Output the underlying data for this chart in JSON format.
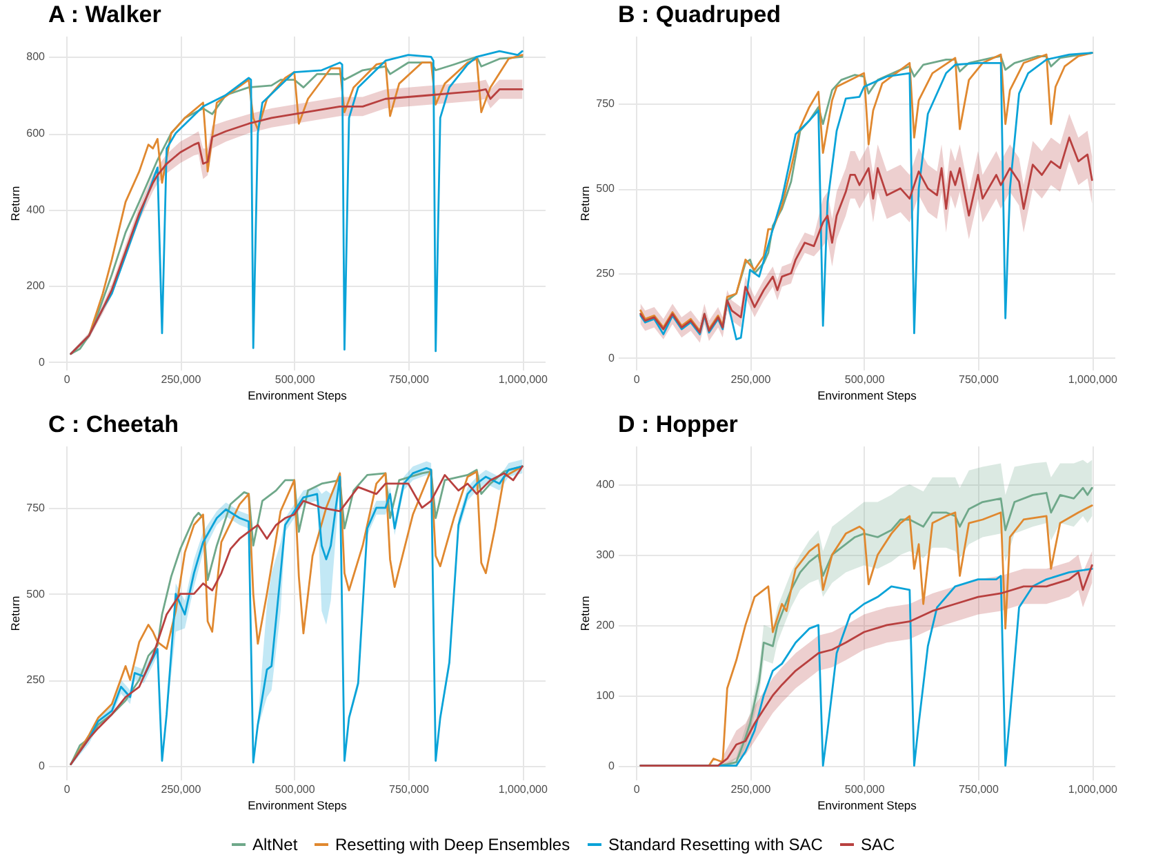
{
  "chart_data": [
    {
      "type": "line",
      "title": "A : Walker",
      "xlabel": "Environment Steps",
      "ylabel": "Return",
      "xlim": [
        -39500,
        1049500
      ],
      "ylim": [
        -20,
        855
      ],
      "xticks": [
        {
          "value": 0,
          "label": "0"
        },
        {
          "value": 250000,
          "label": "250,000"
        },
        {
          "value": 500000,
          "label": "500,000"
        },
        {
          "value": 750000,
          "label": "750,000"
        },
        {
          "value": 1000000,
          "label": "1,000,000"
        }
      ],
      "yticks": [
        0,
        200,
        400,
        600,
        800
      ],
      "grid": true,
      "legend": "bottom",
      "series": [
        {
          "name": "AltNet",
          "color": "#6fa88a",
          "x": [
            10000,
            30000,
            50000,
            70000,
            100000,
            130000,
            160000,
            200000,
            230000,
            260000,
            300000,
            320000,
            350000,
            400000,
            450000,
            470000,
            500000,
            520000,
            550000,
            600000,
            610000,
            650000,
            700000,
            710000,
            750000,
            800000,
            810000,
            850000,
            900000,
            910000,
            950000,
            1000000
          ],
          "values": [
            22,
            35,
            70,
            130,
            230,
            340,
            420,
            530,
            600,
            640,
            665,
            650,
            700,
            720,
            725,
            740,
            740,
            720,
            755,
            755,
            740,
            765,
            775,
            755,
            785,
            785,
            765,
            780,
            800,
            775,
            795,
            800
          ]
        },
        {
          "name": "Resetting with Deep Ensembles",
          "color": "#e0882f",
          "x": [
            10000,
            50000,
            80000,
            100000,
            130000,
            160000,
            180000,
            190000,
            200000,
            210000,
            230000,
            260000,
            300000,
            305000,
            310000,
            330000,
            400000,
            410000,
            420000,
            440000,
            480000,
            500000,
            510000,
            530000,
            580000,
            600000,
            610000,
            630000,
            680000,
            700000,
            710000,
            730000,
            780000,
            800000,
            810000,
            830000,
            880000,
            900000,
            910000,
            930000,
            970000,
            1000000
          ],
          "values": [
            22,
            70,
            180,
            270,
            420,
            500,
            570,
            560,
            585,
            470,
            600,
            640,
            680,
            600,
            500,
            680,
            740,
            640,
            610,
            690,
            745,
            760,
            625,
            690,
            770,
            770,
            655,
            720,
            780,
            785,
            645,
            730,
            785,
            785,
            675,
            730,
            785,
            795,
            655,
            720,
            795,
            805
          ]
        },
        {
          "name": "Standard Resetting with SAC",
          "color": "#0aa3d8",
          "x": [
            10000,
            50000,
            80000,
            100000,
            130000,
            160000,
            200000,
            210000,
            220000,
            240000,
            300000,
            350000,
            400000,
            405000,
            410000,
            420000,
            430000,
            500000,
            560000,
            600000,
            605000,
            610000,
            620000,
            640000,
            700000,
            750000,
            800000,
            805000,
            810000,
            820000,
            840000,
            880000,
            900000,
            950000,
            990000,
            1000000
          ],
          "values": [
            22,
            70,
            140,
            180,
            280,
            380,
            510,
            76,
            560,
            600,
            670,
            700,
            745,
            740,
            37,
            600,
            680,
            760,
            765,
            785,
            780,
            33,
            640,
            720,
            790,
            805,
            800,
            790,
            29,
            640,
            720,
            780,
            800,
            815,
            805,
            815
          ]
        },
        {
          "name": "SAC",
          "color": "#b8403f",
          "x": [
            10000,
            50000,
            80000,
            100000,
            130000,
            160000,
            190000,
            200000,
            220000,
            250000,
            280000,
            290000,
            300000,
            310000,
            320000,
            350000,
            400000,
            450000,
            500000,
            550000,
            600000,
            650000,
            700000,
            750000,
            800000,
            850000,
            900000,
            920000,
            930000,
            950000,
            1000000
          ],
          "values": [
            22,
            70,
            140,
            190,
            290,
            390,
            470,
            490,
            520,
            550,
            570,
            575,
            520,
            525,
            590,
            605,
            625,
            640,
            650,
            660,
            670,
            670,
            690,
            695,
            700,
            705,
            710,
            715,
            690,
            715,
            715
          ],
          "lower": [
            18,
            62,
            128,
            175,
            272,
            370,
            448,
            468,
            495,
            522,
            542,
            545,
            480,
            490,
            560,
            578,
            600,
            615,
            625,
            635,
            645,
            645,
            665,
            670,
            675,
            680,
            685,
            690,
            665,
            690,
            690
          ],
          "upper": [
            26,
            78,
            152,
            205,
            308,
            410,
            492,
            512,
            545,
            578,
            598,
            605,
            560,
            560,
            620,
            632,
            650,
            665,
            675,
            685,
            695,
            695,
            715,
            720,
            725,
            730,
            735,
            740,
            715,
            740,
            740
          ]
        }
      ]
    },
    {
      "type": "line",
      "title": "B : Quadruped",
      "xlabel": "Environment Steps",
      "ylabel": "Return",
      "xlim": [
        -39500,
        1049500
      ],
      "ylim": [
        -35,
        950
      ],
      "xticks": [
        {
          "value": 0,
          "label": "0"
        },
        {
          "value": 250000,
          "label": "250,000"
        },
        {
          "value": 500000,
          "label": "500,000"
        },
        {
          "value": 750000,
          "label": "750,000"
        },
        {
          "value": 1000000,
          "label": "1,000,000"
        }
      ],
      "yticks": [
        0,
        250,
        500,
        750
      ],
      "grid": true,
      "legend": "bottom",
      "series": [
        {
          "name": "AltNet",
          "color": "#6fa88a",
          "x": [
            10000,
            20000,
            40000,
            60000,
            80000,
            100000,
            120000,
            140000,
            150000,
            160000,
            180000,
            190000,
            200000,
            220000,
            240000,
            250000,
            260000,
            280000,
            290000,
            300000,
            320000,
            340000,
            360000,
            380000,
            400000,
            410000,
            430000,
            450000,
            480000,
            500000,
            510000,
            530000,
            580000,
            600000,
            610000,
            630000,
            680000,
            700000,
            710000,
            730000,
            780000,
            800000,
            810000,
            830000,
            880000,
            900000,
            910000,
            930000,
            1000000
          ],
          "values": [
            130,
            110,
            120,
            85,
            130,
            90,
            110,
            75,
            130,
            80,
            120,
            90,
            170,
            190,
            280,
            290,
            250,
            280,
            310,
            390,
            440,
            520,
            670,
            700,
            740,
            690,
            790,
            820,
            835,
            830,
            780,
            820,
            850,
            860,
            830,
            865,
            880,
            880,
            845,
            870,
            885,
            890,
            850,
            870,
            890,
            890,
            860,
            885,
            900
          ]
        },
        {
          "name": "Resetting with Deep Ensembles",
          "color": "#e0882f",
          "x": [
            10000,
            20000,
            40000,
            60000,
            80000,
            100000,
            120000,
            140000,
            150000,
            160000,
            180000,
            190000,
            200000,
            220000,
            240000,
            260000,
            280000,
            290000,
            300000,
            320000,
            340000,
            360000,
            380000,
            400000,
            410000,
            430000,
            440000,
            500000,
            510000,
            520000,
            540000,
            600000,
            610000,
            620000,
            650000,
            700000,
            710000,
            730000,
            760000,
            800000,
            810000,
            820000,
            850000,
            900000,
            910000,
            920000,
            940000,
            970000,
            1000000
          ],
          "values": [
            140,
            115,
            125,
            90,
            135,
            95,
            115,
            80,
            125,
            85,
            125,
            95,
            180,
            190,
            290,
            260,
            300,
            380,
            380,
            450,
            560,
            680,
            740,
            785,
            605,
            760,
            800,
            840,
            630,
            730,
            810,
            870,
            650,
            760,
            840,
            885,
            675,
            820,
            870,
            895,
            690,
            790,
            870,
            895,
            690,
            800,
            860,
            890,
            900
          ]
        },
        {
          "name": "Standard Resetting with SAC",
          "color": "#0aa3d8",
          "x": [
            10000,
            20000,
            40000,
            60000,
            80000,
            100000,
            120000,
            140000,
            150000,
            160000,
            180000,
            190000,
            200000,
            220000,
            230000,
            250000,
            270000,
            300000,
            320000,
            350000,
            380000,
            400000,
            410000,
            420000,
            440000,
            460000,
            490000,
            500000,
            550000,
            600000,
            610000,
            620000,
            640000,
            680000,
            700000,
            750000,
            800000,
            810000,
            820000,
            840000,
            860000,
            900000,
            950000,
            1000000
          ],
          "values": [
            125,
            105,
            115,
            70,
            125,
            85,
            105,
            70,
            125,
            75,
            115,
            85,
            170,
            55,
            60,
            260,
            240,
            380,
            470,
            660,
            700,
            730,
            95,
            460,
            670,
            765,
            770,
            800,
            830,
            840,
            73,
            500,
            720,
            840,
            865,
            870,
            870,
            117,
            500,
            780,
            840,
            880,
            895,
            900
          ]
        },
        {
          "name": "SAC",
          "color": "#b8403f",
          "x": [
            10000,
            20000,
            40000,
            60000,
            80000,
            100000,
            120000,
            140000,
            150000,
            160000,
            180000,
            190000,
            200000,
            210000,
            230000,
            240000,
            260000,
            280000,
            300000,
            310000,
            320000,
            340000,
            350000,
            370000,
            390000,
            410000,
            420000,
            430000,
            440000,
            460000,
            470000,
            480000,
            490000,
            510000,
            520000,
            530000,
            550000,
            580000,
            600000,
            620000,
            640000,
            660000,
            670000,
            680000,
            690000,
            700000,
            710000,
            730000,
            750000,
            760000,
            790000,
            800000,
            820000,
            840000,
            850000,
            870000,
            890000,
            910000,
            930000,
            950000,
            970000,
            990000,
            1000000
          ],
          "values": [
            130,
            110,
            120,
            85,
            130,
            90,
            110,
            75,
            130,
            80,
            120,
            90,
            170,
            140,
            120,
            210,
            150,
            200,
            240,
            200,
            240,
            250,
            290,
            340,
            330,
            400,
            420,
            340,
            420,
            490,
            540,
            540,
            510,
            560,
            470,
            560,
            480,
            500,
            470,
            550,
            500,
            480,
            560,
            440,
            550,
            510,
            560,
            420,
            540,
            470,
            540,
            510,
            560,
            520,
            440,
            570,
            540,
            580,
            560,
            650,
            580,
            600,
            525
          ],
          "lower": [
            100,
            80,
            90,
            55,
            100,
            60,
            80,
            45,
            100,
            50,
            90,
            60,
            140,
            110,
            90,
            180,
            120,
            170,
            210,
            170,
            210,
            220,
            260,
            310,
            300,
            330,
            350,
            270,
            350,
            420,
            470,
            470,
            440,
            490,
            400,
            490,
            410,
            430,
            400,
            480,
            430,
            410,
            490,
            370,
            480,
            440,
            490,
            350,
            470,
            400,
            470,
            440,
            490,
            450,
            370,
            500,
            470,
            510,
            490,
            580,
            510,
            530,
            455
          ],
          "upper": [
            160,
            140,
            150,
            115,
            160,
            120,
            140,
            105,
            160,
            110,
            150,
            120,
            200,
            170,
            150,
            240,
            180,
            230,
            270,
            230,
            270,
            280,
            320,
            370,
            360,
            470,
            490,
            410,
            490,
            560,
            610,
            610,
            580,
            630,
            540,
            630,
            550,
            570,
            540,
            620,
            570,
            550,
            630,
            510,
            620,
            580,
            630,
            490,
            610,
            540,
            610,
            580,
            630,
            590,
            510,
            640,
            610,
            650,
            630,
            720,
            650,
            670,
            595
          ]
        }
      ]
    },
    {
      "type": "line",
      "title": "C : Cheetah",
      "xlabel": "Environment Steps",
      "ylabel": "Return",
      "xlim": [
        -39500,
        1049500
      ],
      "ylim": [
        -40,
        930
      ],
      "xticks": [
        {
          "value": 0,
          "label": "0"
        },
        {
          "value": 250000,
          "label": "250,000"
        },
        {
          "value": 500000,
          "label": "500,000"
        },
        {
          "value": 750000,
          "label": "750,000"
        },
        {
          "value": 1000000,
          "label": "1,000,000"
        }
      ],
      "yticks": [
        0,
        250,
        500,
        750
      ],
      "grid": true,
      "legend": "bottom",
      "series": [
        {
          "name": "AltNet",
          "color": "#6fa88a",
          "x": [
            10000,
            30000,
            50000,
            70000,
            100000,
            130000,
            160000,
            180000,
            200000,
            210000,
            230000,
            250000,
            280000,
            290000,
            300000,
            310000,
            330000,
            360000,
            390000,
            400000,
            410000,
            430000,
            460000,
            480000,
            500000,
            510000,
            530000,
            560000,
            600000,
            610000,
            630000,
            660000,
            700000,
            710000,
            730000,
            780000,
            800000,
            810000,
            830000,
            880000,
            900000,
            910000,
            930000,
            960000,
            1000000
          ],
          "values": [
            5,
            60,
            80,
            120,
            150,
            190,
            250,
            320,
            350,
            440,
            550,
            630,
            720,
            735,
            720,
            540,
            640,
            760,
            795,
            790,
            640,
            770,
            800,
            830,
            830,
            680,
            800,
            820,
            830,
            690,
            800,
            845,
            850,
            720,
            830,
            850,
            855,
            720,
            830,
            845,
            860,
            790,
            820,
            855,
            870
          ]
        },
        {
          "name": "Resetting with Deep Ensembles",
          "color": "#e0882f",
          "x": [
            10000,
            50000,
            70000,
            100000,
            130000,
            140000,
            160000,
            180000,
            190000,
            200000,
            220000,
            240000,
            260000,
            280000,
            300000,
            310000,
            320000,
            340000,
            380000,
            400000,
            410000,
            420000,
            440000,
            470000,
            500000,
            510000,
            520000,
            540000,
            570000,
            600000,
            610000,
            620000,
            650000,
            680000,
            700000,
            710000,
            720000,
            760000,
            800000,
            810000,
            820000,
            850000,
            880000,
            900000,
            910000,
            920000,
            940000,
            960000,
            1000000
          ],
          "values": [
            5,
            90,
            140,
            180,
            290,
            250,
            360,
            410,
            390,
            360,
            340,
            450,
            620,
            700,
            730,
            420,
            390,
            650,
            760,
            790,
            500,
            355,
            500,
            740,
            830,
            550,
            385,
            610,
            750,
            850,
            560,
            510,
            640,
            820,
            850,
            600,
            520,
            730,
            860,
            610,
            580,
            720,
            840,
            855,
            590,
            560,
            690,
            840,
            870
          ]
        },
        {
          "name": "Standard Resetting with SAC",
          "color": "#0aa3d8",
          "x": [
            10000,
            50000,
            70000,
            100000,
            120000,
            140000,
            150000,
            170000,
            200000,
            210000,
            220000,
            240000,
            260000,
            280000,
            300000,
            330000,
            350000,
            380000,
            400000,
            410000,
            420000,
            440000,
            450000,
            470000,
            480000,
            500000,
            520000,
            550000,
            560000,
            570000,
            580000,
            600000,
            610000,
            620000,
            640000,
            660000,
            680000,
            700000,
            710000,
            720000,
            740000,
            760000,
            790000,
            800000,
            810000,
            820000,
            840000,
            860000,
            880000,
            900000,
            920000,
            950000,
            970000,
            1000000
          ],
          "values": [
            5,
            80,
            130,
            160,
            230,
            200,
            270,
            260,
            340,
            15,
            150,
            500,
            440,
            560,
            650,
            720,
            745,
            720,
            710,
            10,
            120,
            280,
            290,
            560,
            700,
            740,
            780,
            790,
            640,
            600,
            640,
            840,
            15,
            140,
            240,
            690,
            750,
            750,
            790,
            690,
            820,
            850,
            865,
            860,
            15,
            140,
            300,
            700,
            790,
            820,
            840,
            820,
            860,
            870
          ],
          "lower": [
            0,
            65,
            115,
            145,
            210,
            180,
            250,
            240,
            320,
            15,
            140,
            390,
            400,
            520,
            620,
            700,
            725,
            700,
            690,
            10,
            110,
            200,
            220,
            450,
            680,
            720,
            760,
            770,
            450,
            410,
            480,
            820,
            15,
            130,
            225,
            670,
            730,
            730,
            770,
            670,
            800,
            830,
            845,
            840,
            15,
            130,
            280,
            680,
            770,
            800,
            820,
            800,
            840,
            850
          ],
          "upper": [
            10,
            95,
            145,
            175,
            250,
            220,
            290,
            280,
            360,
            15,
            160,
            530,
            480,
            600,
            680,
            740,
            765,
            740,
            730,
            10,
            130,
            470,
            560,
            650,
            720,
            760,
            800,
            810,
            790,
            800,
            790,
            860,
            15,
            150,
            255,
            710,
            770,
            770,
            810,
            710,
            840,
            870,
            885,
            880,
            15,
            150,
            320,
            720,
            810,
            840,
            860,
            840,
            880,
            890
          ]
        },
        {
          "name": "SAC",
          "color": "#b8403f",
          "x": [
            10000,
            50000,
            70000,
            100000,
            130000,
            160000,
            190000,
            220000,
            250000,
            280000,
            300000,
            320000,
            340000,
            360000,
            380000,
            400000,
            420000,
            440000,
            460000,
            480000,
            500000,
            520000,
            560000,
            600000,
            640000,
            680000,
            700000,
            750000,
            780000,
            800000,
            830000,
            860000,
            880000,
            900000,
            930000,
            960000,
            980000,
            1000000
          ],
          "values": [
            5,
            80,
            110,
            150,
            200,
            230,
            320,
            440,
            500,
            500,
            530,
            510,
            560,
            630,
            660,
            680,
            700,
            660,
            700,
            720,
            730,
            770,
            750,
            740,
            810,
            790,
            820,
            820,
            750,
            770,
            845,
            800,
            820,
            790,
            830,
            850,
            830,
            870
          ]
        }
      ]
    },
    {
      "type": "line",
      "title": "D : Hopper",
      "xlabel": "Environment Steps",
      "ylabel": "Return",
      "xlim": [
        -39500,
        1049500
      ],
      "ylim": [
        -20,
        455
      ],
      "xticks": [
        {
          "value": 0,
          "label": "0"
        },
        {
          "value": 250000,
          "label": "250,000"
        },
        {
          "value": 500000,
          "label": "500,000"
        },
        {
          "value": 750000,
          "label": "750,000"
        },
        {
          "value": 1000000,
          "label": "1,000,000"
        }
      ],
      "yticks": [
        0,
        100,
        200,
        300,
        400
      ],
      "grid": true,
      "legend": "bottom",
      "series": [
        {
          "name": "AltNet",
          "color": "#6fa88a",
          "x": [
            10000,
            180000,
            200000,
            220000,
            240000,
            250000,
            270000,
            280000,
            300000,
            310000,
            340000,
            360000,
            380000,
            400000,
            410000,
            430000,
            460000,
            480000,
            500000,
            530000,
            560000,
            580000,
            600000,
            630000,
            650000,
            680000,
            700000,
            710000,
            730000,
            760000,
            800000,
            810000,
            830000,
            870000,
            900000,
            910000,
            930000,
            960000,
            980000,
            990000,
            1000000
          ],
          "values": [
            0,
            0,
            2,
            5,
            40,
            60,
            120,
            175,
            170,
            200,
            250,
            275,
            290,
            300,
            270,
            300,
            315,
            325,
            330,
            325,
            335,
            350,
            350,
            340,
            360,
            360,
            355,
            340,
            365,
            375,
            380,
            335,
            375,
            385,
            388,
            360,
            385,
            380,
            395,
            385,
            395
          ],
          "lower": [
            0,
            0,
            0,
            0,
            25,
            45,
            100,
            150,
            145,
            175,
            225,
            250,
            260,
            265,
            240,
            260,
            275,
            280,
            285,
            280,
            290,
            300,
            305,
            295,
            310,
            310,
            305,
            295,
            315,
            325,
            330,
            290,
            330,
            340,
            345,
            320,
            345,
            340,
            355,
            345,
            355
          ],
          "upper": [
            0,
            0,
            5,
            12,
            55,
            75,
            140,
            200,
            195,
            225,
            275,
            300,
            320,
            335,
            305,
            340,
            355,
            365,
            375,
            375,
            385,
            395,
            400,
            390,
            410,
            410,
            410,
            395,
            420,
            425,
            430,
            385,
            425,
            430,
            432,
            410,
            430,
            430,
            435,
            430,
            435
          ]
        },
        {
          "name": "Resetting with Deep Ensembles",
          "color": "#e0882f",
          "x": [
            10000,
            160000,
            170000,
            190000,
            200000,
            220000,
            240000,
            260000,
            290000,
            300000,
            320000,
            330000,
            350000,
            380000,
            400000,
            410000,
            430000,
            460000,
            490000,
            500000,
            510000,
            530000,
            560000,
            580000,
            600000,
            610000,
            620000,
            630000,
            650000,
            680000,
            700000,
            710000,
            730000,
            760000,
            800000,
            810000,
            820000,
            850000,
            900000,
            910000,
            930000,
            970000,
            1000000
          ],
          "values": [
            0,
            0,
            10,
            5,
            110,
            150,
            200,
            240,
            255,
            190,
            230,
            220,
            280,
            305,
            315,
            250,
            300,
            330,
            340,
            335,
            258,
            300,
            330,
            345,
            355,
            280,
            315,
            230,
            345,
            355,
            360,
            270,
            345,
            350,
            360,
            195,
            325,
            350,
            355,
            280,
            345,
            360,
            370
          ]
        },
        {
          "name": "Standard Resetting with SAC",
          "color": "#0aa3d8",
          "x": [
            10000,
            220000,
            240000,
            260000,
            280000,
            300000,
            320000,
            350000,
            380000,
            400000,
            410000,
            420000,
            440000,
            470000,
            500000,
            530000,
            560000,
            600000,
            610000,
            620000,
            640000,
            660000,
            700000,
            750000,
            790000,
            800000,
            810000,
            820000,
            840000,
            870000,
            900000,
            950000,
            1000000
          ],
          "values": [
            0,
            0,
            20,
            50,
            100,
            135,
            145,
            175,
            195,
            200,
            0,
            50,
            160,
            215,
            230,
            240,
            255,
            250,
            0,
            60,
            170,
            225,
            255,
            265,
            265,
            270,
            0,
            70,
            225,
            255,
            265,
            275,
            280
          ]
        },
        {
          "name": "SAC",
          "color": "#b8403f",
          "x": [
            10000,
            180000,
            200000,
            220000,
            240000,
            260000,
            280000,
            300000,
            320000,
            350000,
            380000,
            400000,
            430000,
            460000,
            500000,
            550000,
            600000,
            650000,
            700000,
            750000,
            800000,
            850000,
            900000,
            950000,
            970000,
            980000,
            1000000
          ],
          "values": [
            0,
            0,
            10,
            30,
            35,
            60,
            80,
            100,
            115,
            135,
            150,
            160,
            165,
            175,
            190,
            200,
            205,
            220,
            230,
            240,
            245,
            255,
            255,
            265,
            275,
            250,
            285
          ],
          "lower": [
            0,
            0,
            0,
            10,
            15,
            35,
            55,
            75,
            90,
            110,
            125,
            135,
            140,
            150,
            165,
            175,
            180,
            195,
            205,
            215,
            220,
            230,
            230,
            240,
            250,
            225,
            260
          ],
          "upper": [
            0,
            0,
            25,
            50,
            60,
            85,
            105,
            125,
            140,
            160,
            175,
            185,
            190,
            200,
            215,
            225,
            230,
            245,
            255,
            265,
            270,
            280,
            280,
            290,
            300,
            275,
            305
          ]
        }
      ]
    }
  ]
}
